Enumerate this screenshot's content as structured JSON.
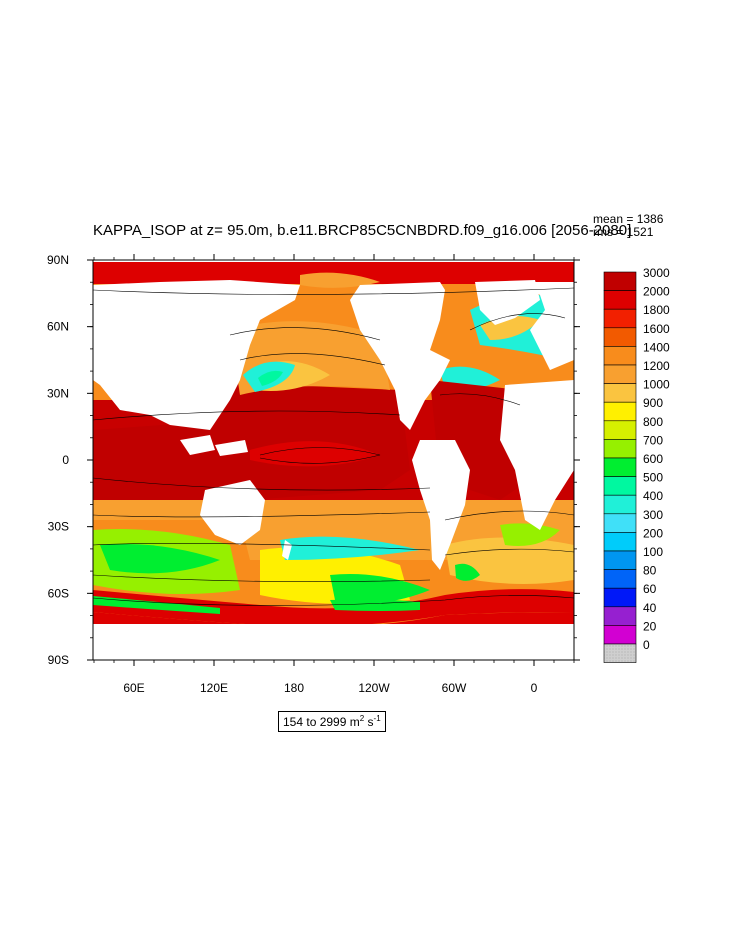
{
  "title": "KAPPA_ISOP at z=  95.0m, b.e11.BRCP85C5CNBDRD.f09_g16.006 [2056-2080]",
  "stats": {
    "mean": "mean = 1386",
    "rms": "rms = 1521"
  },
  "lat_labels": [
    "90N",
    "60N",
    "30N",
    "0",
    "30S",
    "60S",
    "90S"
  ],
  "lon_labels": [
    "60E",
    "120E",
    "180",
    "120W",
    "60W",
    "0"
  ],
  "range": {
    "text": "154 to 2999 m",
    "sup1": "2",
    "mid": " s",
    "sup2": "-1"
  },
  "legend": {
    "levels": [
      "3000",
      "2000",
      "1800",
      "1600",
      "1400",
      "1200",
      "1000",
      "900",
      "800",
      "700",
      "600",
      "500",
      "400",
      "300",
      "200",
      "100",
      "80",
      "60",
      "40",
      "20",
      "0"
    ],
    "colors": [
      "#c00000",
      "#dd0000",
      "#f22000",
      "#f25a00",
      "#f88c1c",
      "#f8a030",
      "#fac440",
      "#fff000",
      "#d6f000",
      "#96f000",
      "#00ee30",
      "#00f8a0",
      "#20f0d8",
      "#40e0f8",
      "#00ccfa",
      "#0096f0",
      "#0064f8",
      "#0018f8",
      "#9620d0",
      "#d200d2",
      "#c8c8c8"
    ]
  }
}
